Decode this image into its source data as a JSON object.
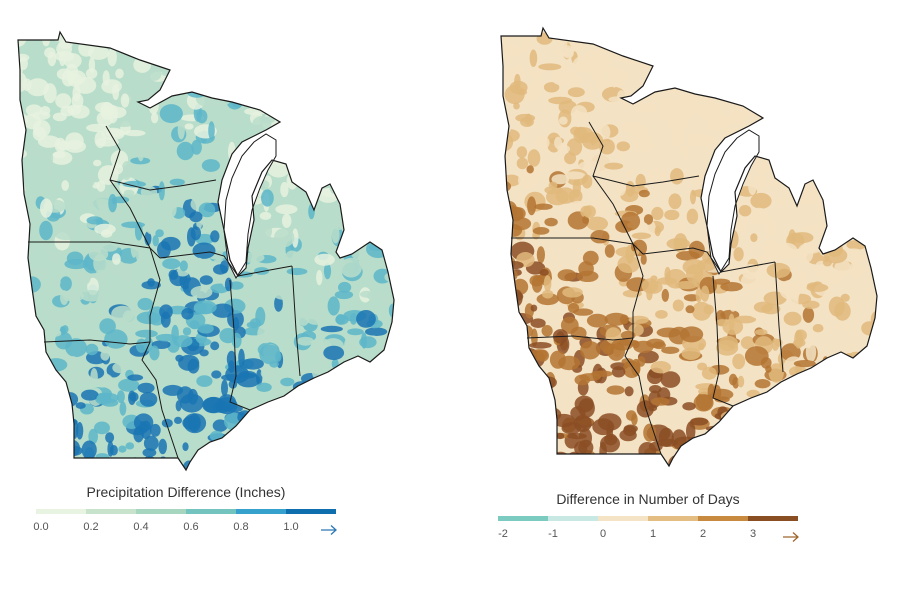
{
  "left_map": {
    "legend": {
      "title": "Precipitation Difference (Inches)",
      "colors": [
        "#e9f3e2",
        "#c7e3cc",
        "#a6d6c0",
        "#73c4bf",
        "#36a1cc",
        "#0f6fae"
      ],
      "tick_labels": [
        "0.0",
        "0.2",
        "0.4",
        "0.6",
        "0.8",
        "1.0"
      ],
      "arrow_color": "#2b78b5"
    },
    "map_colors": {
      "low": "#e6f2df",
      "mid": "#b8ddca",
      "high": "#5db6c9",
      "max": "#1a74b3",
      "border": "#1a1a1a"
    }
  },
  "right_map": {
    "legend": {
      "title": "Difference in Number of Days",
      "colors": [
        "#7ccbc0",
        "#c8e8e4",
        "#f4e3c4",
        "#e3bd82",
        "#c88a3e",
        "#8a4e23"
      ],
      "tick_labels": [
        "-2",
        "-1",
        "0",
        "1",
        "2",
        "3"
      ],
      "arrow_color": "#a0662e"
    },
    "map_colors": {
      "low": "#f3e2c3",
      "mid": "#e1b97d",
      "high": "#b47433",
      "max": "#8b4e24",
      "border": "#1a1a1a"
    }
  }
}
